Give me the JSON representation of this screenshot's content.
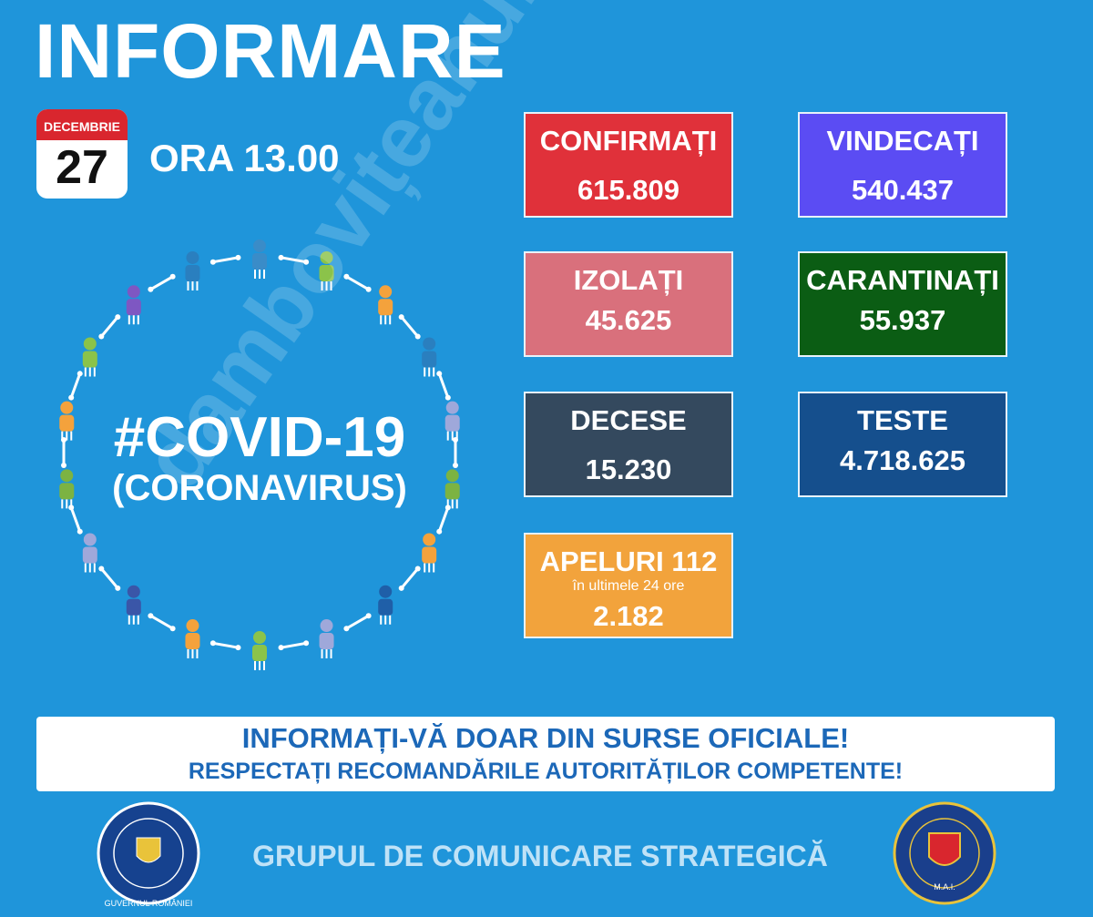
{
  "header": {
    "title": "INFORMARE"
  },
  "date": {
    "month": "DECEMBRIE",
    "day": "27",
    "time": "ORA 13.00"
  },
  "hero": {
    "title": "#COVID-19",
    "subtitle": "(CORONAVIRUS)"
  },
  "stats": [
    {
      "label": "CONFIRMAȚI",
      "value": "615.809"
    },
    {
      "label": "VINDECAȚI",
      "value": "540.437"
    },
    {
      "label": "IZOLAȚI",
      "value": "45.625"
    },
    {
      "label": "CARANTINAȚI",
      "value": "55.937"
    },
    {
      "label": "DECESE",
      "value": "15.230"
    },
    {
      "label": "TESTE",
      "value": "4.718.625"
    },
    {
      "label": "APELURI 112",
      "note": "în ultimele 24 ore",
      "value": "2.182"
    }
  ],
  "watermark": "dambovițeanul.com",
  "banner": {
    "line1": "INFORMAȚI-VĂ DOAR DIN SURSE OFICIALE!",
    "line2": "RESPECTAȚI RECOMANDĂRILE AUTORITĂȚILOR COMPETENTE!"
  },
  "footer": {
    "text": "GRUPUL DE COMUNICARE STRATEGICĂ",
    "left_logo": "GUVERNUL ROMÂNIEI",
    "right_logo": "M.A.I."
  }
}
